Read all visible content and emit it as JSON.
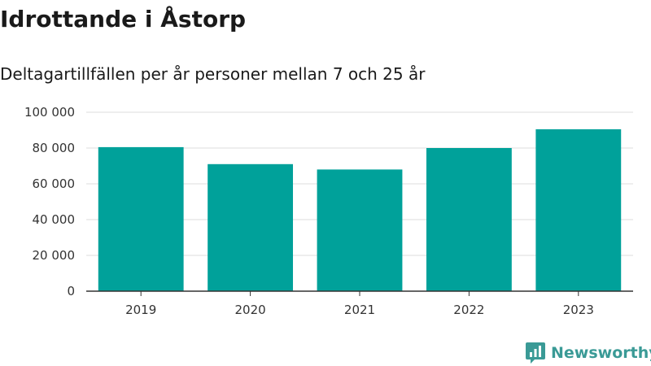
{
  "title": "Idrottande i Åstorp",
  "subtitle": "Deltagartillfällen per år personer mellan 7 och 25 år",
  "brand": {
    "name": "Newsworthy",
    "color": "#3a9a96",
    "icon": "newsworthy-logo-icon"
  },
  "chart_data": {
    "type": "bar",
    "title": "Idrottande i Åstorp",
    "subtitle": "Deltagartillfällen per år personer mellan 7 och 25 år",
    "xlabel": "",
    "ylabel": "",
    "categories": [
      "2019",
      "2020",
      "2021",
      "2022",
      "2023"
    ],
    "values": [
      80500,
      71000,
      68000,
      80000,
      90500
    ],
    "ylim": [
      0,
      100000
    ],
    "yticks": [
      0,
      20000,
      40000,
      60000,
      80000,
      100000
    ],
    "ytick_labels": [
      "0",
      "20 000",
      "40 000",
      "60 000",
      "80 000",
      "100 000"
    ],
    "grid": true,
    "bar_color": "#00a19a",
    "grid_color": "#dddddd",
    "axis_color": "#333333"
  }
}
